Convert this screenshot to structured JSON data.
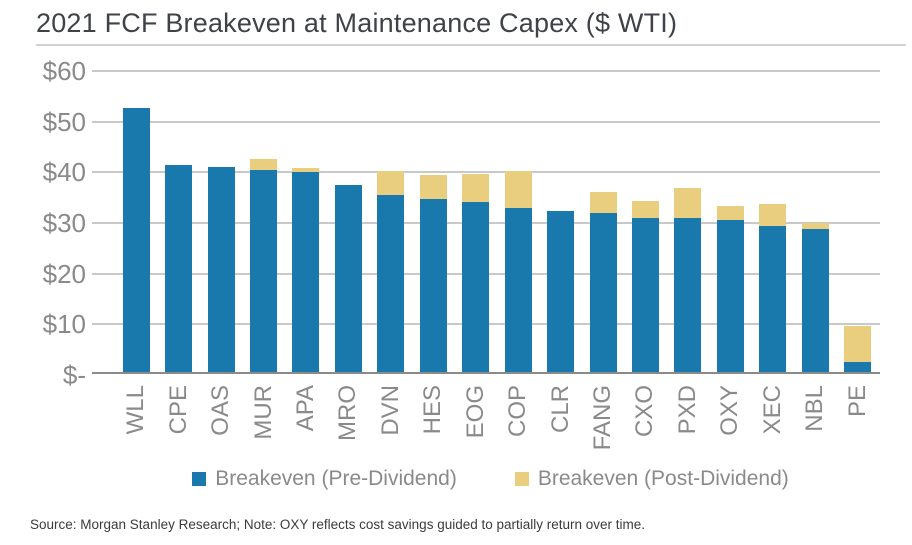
{
  "title": "2021 FCF Breakeven at Maintenance Capex ($ WTI)",
  "source_note": "Source: Morgan Stanley Research; Note: OXY reflects cost savings guided to partially return over time.",
  "colors": {
    "pre_dividend_blue": "#1979AC",
    "post_dividend_tan": "#EACE80",
    "gridline": "#C9C9C9",
    "baseline": "#8A8A8A",
    "axis_text": "#8A8A8A",
    "title_text": "#3F4247"
  },
  "chart_data": {
    "type": "bar",
    "stacked": true,
    "title": "2021 FCF Breakeven at Maintenance Capex ($ WTI)",
    "categories": [
      "WLL",
      "CPE",
      "OAS",
      "MUR",
      "APA",
      "MRO",
      "DVN",
      "HES",
      "EOG",
      "COP",
      "CLR",
      "FANG",
      "CXO",
      "PXD",
      "OXY",
      "XEC",
      "NBL",
      "PE"
    ],
    "series": [
      {
        "name": "Breakeven (Pre-Dividend)",
        "color": "#1979AC",
        "values": [
          52.5,
          41.2,
          40.8,
          40.3,
          39.8,
          37.3,
          35.3,
          34.5,
          34.0,
          32.7,
          32.2,
          31.8,
          30.8,
          30.8,
          30.4,
          29.3,
          28.7,
          2.4
        ]
      },
      {
        "name": "Breakeven (Post-Dividend)",
        "color": "#EACE80",
        "values": [
          0,
          0,
          0,
          2.2,
          0.7,
          0,
          4.7,
          4.7,
          5.5,
          7.3,
          0,
          4.2,
          3.3,
          6.0,
          2.8,
          4.4,
          1.1,
          7.1
        ]
      }
    ],
    "stacked_totals": [
      52.5,
      41.2,
      40.8,
      42.5,
      40.5,
      37.3,
      40.0,
      39.2,
      39.5,
      40.0,
      32.2,
      36.0,
      34.1,
      36.8,
      33.2,
      33.7,
      29.8,
      9.5
    ],
    "y_tick_labels": [
      "$60",
      "$50",
      "$40",
      "$30",
      "$20",
      "$10",
      "$-"
    ],
    "ylim": [
      0,
      60
    ],
    "grid": true,
    "legend_position": "bottom"
  }
}
